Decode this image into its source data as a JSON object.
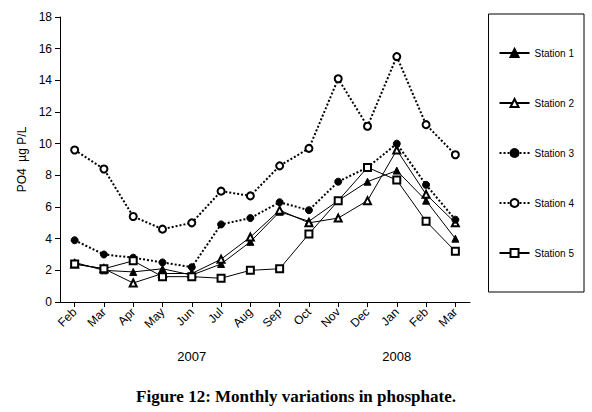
{
  "chart_data": {
    "type": "line",
    "title": "Figure 12: Monthly variations in phosphate.",
    "y_label": "PO4  µg P/L",
    "categories": [
      "Feb",
      "Mar",
      "Apr",
      "May",
      "Jun",
      "Jul",
      "Aug",
      "Sep",
      "Oct",
      "Nov",
      "Dec",
      "Jan",
      "Feb",
      "Mar"
    ],
    "annotations": [
      {
        "text": "2007",
        "category": 4
      },
      {
        "text": "2008",
        "category": 11
      }
    ],
    "series": [
      {
        "name": "Station 1",
        "color": "#000000",
        "marker": "triangle",
        "line_style": "solid",
        "values": [
          2.5,
          2.0,
          1.9,
          2.1,
          1.7,
          2.4,
          3.8,
          5.7,
          5.1,
          6.4,
          7.6,
          8.3,
          6.4,
          4.0
        ]
      },
      {
        "name": "Station 2",
        "color": "#000000",
        "marker": "open-triangle",
        "line_style": "solid",
        "values": [
          2.4,
          2.1,
          1.2,
          1.8,
          1.8,
          2.7,
          4.1,
          5.8,
          5.0,
          5.3,
          6.4,
          9.6,
          6.8,
          5.0
        ]
      },
      {
        "name": "Station 3",
        "color": "#000000",
        "marker": "circle",
        "line_style": "dotted",
        "values": [
          3.9,
          3.0,
          2.8,
          2.5,
          2.2,
          4.9,
          5.3,
          6.3,
          5.8,
          7.6,
          8.5,
          10.0,
          7.4,
          5.2
        ]
      },
      {
        "name": "Station 4",
        "color": "#000000",
        "marker": "open-circle",
        "line_style": "dotted",
        "values": [
          9.6,
          8.4,
          5.4,
          4.6,
          5.0,
          7.0,
          6.7,
          8.6,
          9.7,
          14.1,
          11.1,
          15.5,
          11.2,
          9.3
        ]
      },
      {
        "name": "Station 5",
        "color": "#000000",
        "marker": "open-square",
        "line_style": "solid",
        "values": [
          2.4,
          2.1,
          2.6,
          1.6,
          1.6,
          1.5,
          2.0,
          2.1,
          4.3,
          6.4,
          8.5,
          7.7,
          5.1,
          3.2
        ]
      }
    ],
    "ylim": [
      0,
      18
    ],
    "yticks": [
      0,
      2,
      4,
      6,
      8,
      10,
      12,
      14,
      16,
      18
    ],
    "grid": false,
    "legend": "right"
  }
}
